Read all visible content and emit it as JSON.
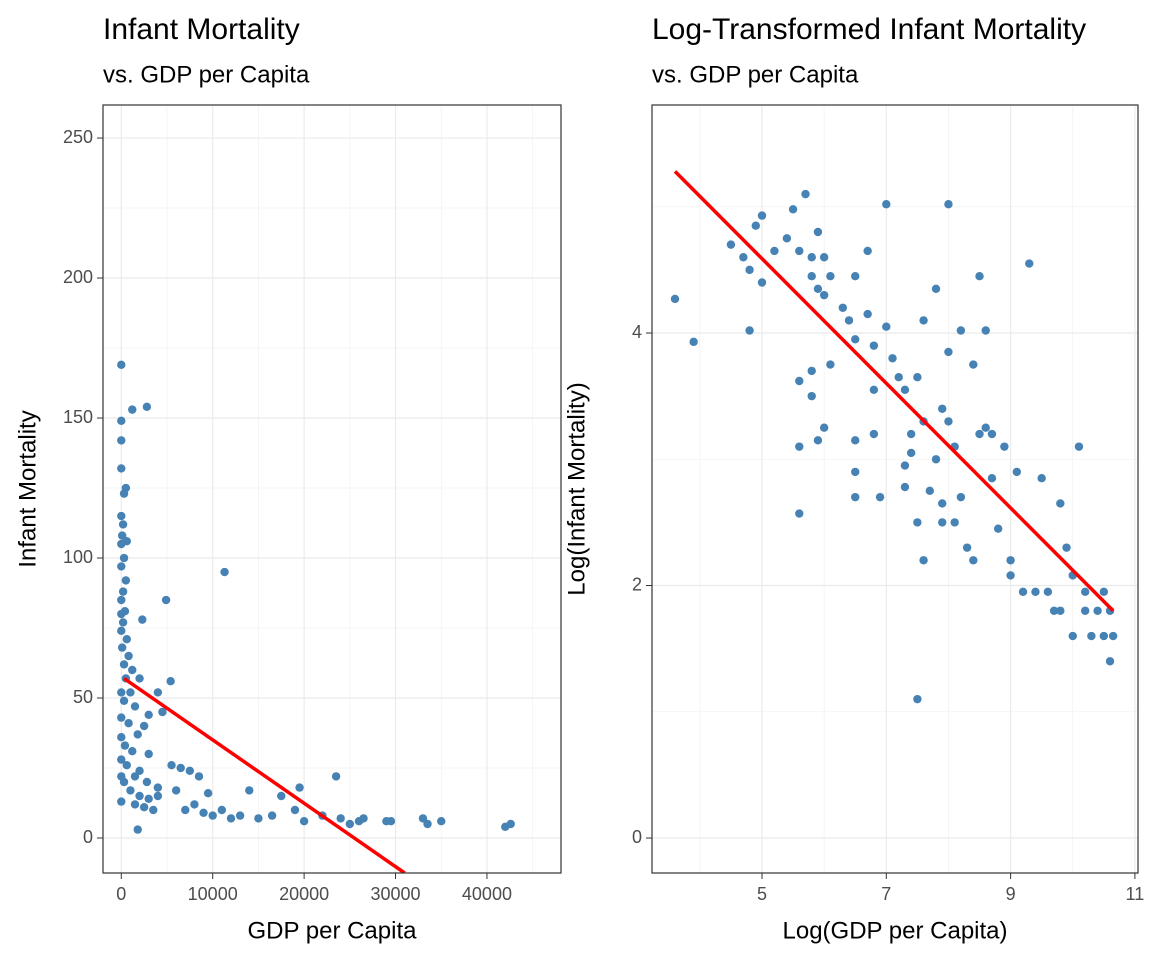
{
  "chart_data": [
    {
      "type": "scatter",
      "title": "Infant Mortality",
      "subtitle": "vs. GDP per Capita",
      "x_label": "GDP per Capita",
      "y_label": "Infant Mortality",
      "color": "#4682b4",
      "xlim": [
        -2000,
        48100
      ],
      "ylim": [
        -12.5,
        261.8
      ],
      "xticks": [
        0,
        10000,
        20000,
        30000,
        40000
      ],
      "yticks": [
        0,
        50,
        100,
        150,
        200,
        250
      ],
      "minor_xticks": [
        5000,
        15000,
        25000,
        35000,
        45000
      ],
      "minor_yticks": [
        25,
        75,
        125,
        175,
        225
      ],
      "x": [
        0,
        0,
        0,
        0,
        500,
        300,
        0,
        200,
        100,
        0,
        600,
        300,
        0,
        500,
        200,
        0,
        400,
        0,
        200,
        0,
        600,
        100,
        800,
        300,
        1200,
        500,
        0,
        2000,
        1000,
        300,
        1500,
        0,
        800,
        2500,
        1800,
        0,
        400,
        1200,
        3000,
        0,
        600,
        2000,
        0,
        1500,
        300,
        2800,
        4000,
        1000,
        2000,
        0,
        3000,
        1500,
        2500,
        3500,
        1800,
        1200,
        2800,
        11300,
        4900,
        2300,
        5400,
        4000,
        3000,
        4500,
        5500,
        6500,
        7500,
        8500,
        6000,
        9000,
        10000,
        12000,
        13000,
        14000,
        11000,
        15000,
        16500,
        17500,
        19000,
        19500,
        20000,
        22000,
        23500,
        24000,
        25000,
        26000,
        26500,
        29000,
        29500,
        33000,
        33500,
        35000,
        42000,
        42600,
        8000,
        4000,
        7000,
        9500
      ],
      "y": [
        169,
        149,
        142,
        132,
        125,
        123,
        115,
        112,
        108,
        105,
        106,
        100,
        97,
        92,
        88,
        85,
        81,
        80,
        77,
        74,
        71,
        68,
        65,
        62,
        60,
        57,
        52,
        57,
        52,
        49,
        47,
        43,
        41,
        40,
        37,
        36,
        33,
        31,
        30,
        28,
        26,
        24,
        22,
        22,
        20,
        20,
        18,
        17,
        15,
        13,
        14,
        12,
        11,
        10,
        3,
        153,
        154,
        95,
        85,
        78,
        56,
        52,
        44,
        45,
        26,
        25,
        24,
        22,
        17,
        9,
        8,
        7,
        8,
        17,
        10,
        7,
        8,
        15,
        10,
        18,
        6,
        8,
        22,
        7,
        5,
        6,
        7,
        6,
        6,
        7,
        5,
        6,
        4,
        5,
        12,
        15,
        10,
        16
      ],
      "trend_line": {
        "color": "#ff0000",
        "x": [
          300,
          31000
        ],
        "y": [
          57,
          -12.5
        ]
      }
    },
    {
      "type": "scatter",
      "title": "Log-Transformed Infant Mortality",
      "subtitle": "vs. GDP per Capita",
      "x_label": "Log(GDP per Capita)",
      "y_label": "Log(Infant Mortality)",
      "color": "#4682b4",
      "xlim": [
        3.23,
        11.05
      ],
      "ylim": [
        -0.277,
        5.806
      ],
      "xticks": [
        5,
        7,
        9,
        11
      ],
      "yticks": [
        0,
        2,
        4
      ],
      "minor_xticks": [
        4,
        6,
        8,
        10
      ],
      "minor_yticks": [
        1,
        3,
        5
      ],
      "x": [
        3.6,
        3.9,
        4.5,
        4.7,
        4.8,
        4.8,
        4.9,
        5.0,
        5.0,
        5.2,
        5.4,
        5.5,
        5.6,
        5.7,
        5.8,
        5.8,
        5.9,
        5.9,
        6.0,
        6.0,
        6.1,
        5.6,
        5.6,
        5.6,
        5.8,
        5.8,
        5.9,
        6.0,
        6.1,
        6.3,
        6.4,
        6.5,
        6.5,
        6.5,
        6.5,
        6.5,
        6.7,
        6.7,
        6.8,
        6.8,
        6.8,
        6.9,
        7.0,
        7.0,
        7.1,
        7.2,
        7.3,
        7.3,
        7.3,
        7.4,
        7.4,
        7.5,
        7.5,
        7.5,
        7.6,
        7.6,
        7.6,
        7.7,
        7.8,
        7.8,
        7.9,
        7.9,
        7.9,
        8.0,
        8.0,
        8.0,
        8.1,
        8.1,
        8.2,
        8.2,
        8.3,
        8.4,
        8.4,
        8.5,
        8.5,
        8.6,
        8.6,
        8.7,
        8.7,
        8.8,
        8.9,
        9.0,
        9.0,
        9.1,
        9.2,
        9.3,
        9.4,
        9.5,
        9.6,
        9.7,
        9.8,
        9.8,
        9.9,
        10.0,
        10.0,
        10.1,
        10.2,
        10.2,
        10.3,
        10.4,
        10.5,
        10.5,
        10.6,
        10.6,
        10.65
      ],
      "y": [
        4.27,
        3.93,
        4.7,
        4.6,
        4.5,
        4.02,
        4.85,
        4.93,
        4.4,
        4.65,
        4.75,
        4.98,
        4.65,
        5.1,
        4.6,
        4.45,
        4.8,
        4.35,
        4.6,
        4.3,
        4.45,
        3.62,
        3.1,
        2.57,
        3.7,
        3.5,
        3.15,
        3.25,
        3.75,
        4.2,
        4.1,
        4.45,
        3.95,
        3.15,
        2.9,
        2.7,
        4.65,
        4.15,
        3.9,
        3.55,
        3.2,
        2.7,
        5.02,
        4.05,
        3.8,
        3.65,
        3.55,
        2.95,
        2.78,
        3.2,
        3.05,
        3.65,
        2.5,
        1.1,
        4.1,
        3.3,
        2.2,
        2.75,
        3.0,
        4.35,
        3.4,
        2.65,
        2.5,
        3.85,
        5.02,
        3.3,
        3.1,
        2.5,
        4.02,
        2.7,
        2.3,
        3.75,
        2.2,
        3.2,
        4.45,
        3.25,
        4.02,
        2.85,
        3.2,
        2.45,
        3.1,
        2.2,
        2.08,
        2.9,
        1.95,
        4.55,
        1.95,
        2.85,
        1.95,
        1.8,
        2.65,
        1.8,
        2.3,
        2.08,
        1.6,
        3.1,
        1.8,
        1.95,
        1.6,
        1.8,
        1.95,
        1.6,
        1.8,
        1.4,
        1.6
      ],
      "trend_line": {
        "color": "#ff0000",
        "x": [
          3.6,
          10.65
        ],
        "y": [
          5.28,
          1.8
        ]
      }
    }
  ]
}
